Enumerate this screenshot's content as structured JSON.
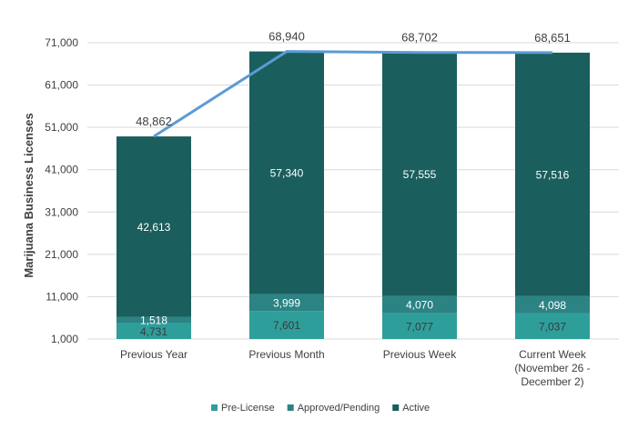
{
  "chart_data": {
    "type": "bar",
    "stacked": true,
    "title": "",
    "xlabel": "",
    "ylabel": "Marijuana Business Licenses",
    "ylim": [
      1000,
      71000
    ],
    "yticks": [
      "1,000",
      "11,000",
      "21,000",
      "31,000",
      "41,000",
      "51,000",
      "61,000",
      "71,000"
    ],
    "grid": true,
    "legend_position": "bottom",
    "categories": [
      [
        "Previous Year"
      ],
      [
        "Previous Month"
      ],
      [
        "Previous Week"
      ],
      [
        "Current Week",
        "(November 26 -",
        "December 2)"
      ]
    ],
    "series": [
      {
        "name": "Pre-License",
        "color": "#2e9e9b",
        "values": [
          4731,
          7601,
          7077,
          7037
        ],
        "labels": [
          "4,731",
          "7,601",
          "7,077",
          "7,037"
        ]
      },
      {
        "name": "Approved/Pending",
        "color": "#2b8384",
        "values": [
          1518,
          3999,
          4070,
          4098
        ],
        "labels": [
          "1,518",
          "3,999",
          "4,070",
          "4,098"
        ]
      },
      {
        "name": "Active",
        "color": "#1a5e5d",
        "values": [
          42613,
          57340,
          57555,
          57516
        ],
        "labels": [
          "42,613",
          "57,340",
          "57,555",
          "57,516"
        ]
      }
    ],
    "totals": {
      "values": [
        48862,
        68940,
        68702,
        68651
      ],
      "labels": [
        "48,862",
        "68,940",
        "68,702",
        "68,651"
      ],
      "line_color": "#5b9bd5"
    }
  }
}
